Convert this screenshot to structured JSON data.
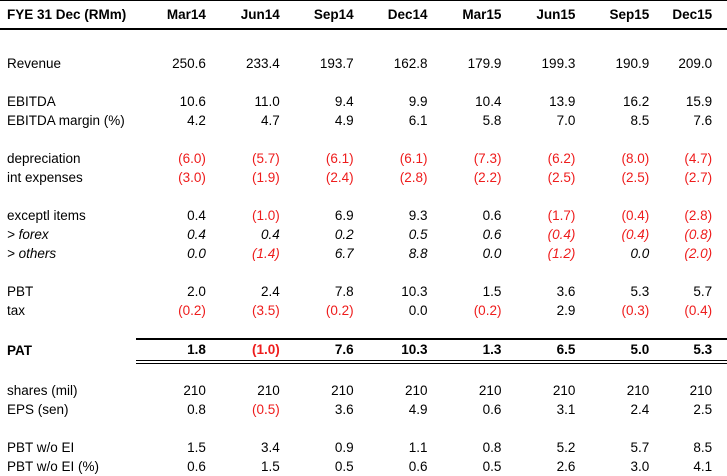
{
  "colors": {
    "negative": "#ee1c1c",
    "text": "#000000",
    "border": "#000000",
    "background": "#ffffff"
  },
  "table": {
    "header": {
      "label": "FYE 31 Dec (RMm)",
      "columns": [
        "Mar14",
        "Jun14",
        "Sep14",
        "Dec14",
        "Mar15",
        "Jun15",
        "Sep15",
        "Dec15"
      ]
    },
    "rows": [
      {
        "spacer": true
      },
      {
        "label": "Revenue",
        "values": [
          "250.6",
          "233.4",
          "193.7",
          "162.8",
          "179.9",
          "199.3",
          "190.9",
          "209.0"
        ]
      },
      {
        "spacer": true
      },
      {
        "label": "EBITDA",
        "values": [
          "10.6",
          "11.0",
          "9.4",
          "9.9",
          "10.4",
          "13.9",
          "16.2",
          "15.9"
        ]
      },
      {
        "label": "EBITDA margin (%)",
        "values": [
          "4.2",
          "4.7",
          "4.9",
          "6.1",
          "5.8",
          "7.0",
          "8.5",
          "7.6"
        ]
      },
      {
        "spacer": true
      },
      {
        "label": "depreciation",
        "values": [
          "(6.0)",
          "(5.7)",
          "(6.1)",
          "(6.1)",
          "(7.3)",
          "(6.2)",
          "(8.0)",
          "(4.7)"
        ]
      },
      {
        "label": "int expenses",
        "values": [
          "(3.0)",
          "(1.9)",
          "(2.4)",
          "(2.8)",
          "(2.2)",
          "(2.5)",
          "(2.5)",
          "(2.7)"
        ]
      },
      {
        "spacer": true
      },
      {
        "label": "exceptl items",
        "values": [
          "0.4",
          "(1.0)",
          "6.9",
          "9.3",
          "0.6",
          "(1.7)",
          "(0.4)",
          "(2.8)"
        ]
      },
      {
        "label": "> forex",
        "italic": true,
        "values": [
          "0.4",
          "0.4",
          "0.2",
          "0.5",
          "0.6",
          "(0.4)",
          "(0.4)",
          "(0.8)"
        ]
      },
      {
        "label": "> others",
        "italic": true,
        "values": [
          "0.0",
          "(1.4)",
          "6.7",
          "8.8",
          "0.0",
          "(1.2)",
          "0.0",
          "(2.0)"
        ]
      },
      {
        "spacer": true
      },
      {
        "label": "PBT",
        "values": [
          "2.0",
          "2.4",
          "7.8",
          "10.3",
          "1.5",
          "3.6",
          "5.3",
          "5.7"
        ]
      },
      {
        "label": "tax",
        "values": [
          "(0.2)",
          "(3.5)",
          "(0.2)",
          "0.0",
          "(0.2)",
          "2.9",
          "(0.3)",
          "(0.4)"
        ]
      },
      {
        "spacer": true
      },
      {
        "label": "PAT",
        "bold": true,
        "total": true,
        "values": [
          "1.8",
          "(1.0)",
          "7.6",
          "10.3",
          "1.3",
          "6.5",
          "5.0",
          "5.3"
        ]
      },
      {
        "spacer": true
      },
      {
        "label": "shares (mil)",
        "values": [
          "210",
          "210",
          "210",
          "210",
          "210",
          "210",
          "210",
          "210"
        ]
      },
      {
        "label": "EPS (sen)",
        "values": [
          "0.8",
          "(0.5)",
          "3.6",
          "4.9",
          "0.6",
          "3.1",
          "2.4",
          "2.5"
        ]
      },
      {
        "spacer": true
      },
      {
        "label": "PBT w/o EI",
        "values": [
          "1.5",
          "3.4",
          "0.9",
          "1.1",
          "0.8",
          "5.2",
          "5.7",
          "8.5"
        ]
      },
      {
        "label": "PBT w/o EI (%)",
        "values": [
          "0.6",
          "1.5",
          "0.5",
          "0.6",
          "0.5",
          "2.6",
          "3.0",
          "4.1"
        ]
      }
    ]
  }
}
